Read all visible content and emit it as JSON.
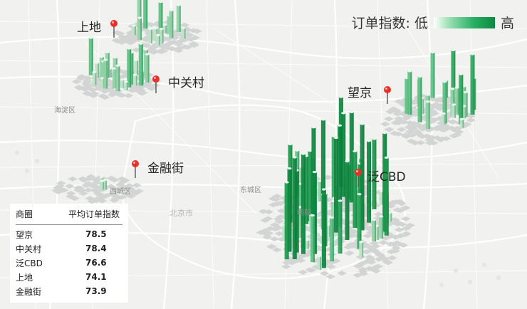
{
  "legend": {
    "title": "订单指数: 低",
    "high": "高",
    "low_color": "#ffffff",
    "high_color": "#0b8a40"
  },
  "districts": {
    "haidian": "海淀区",
    "xicheng": "西城区",
    "dongcheng": "东城区",
    "chaoyang": "朝阳",
    "beijingshi": "北京市"
  },
  "pins": {
    "shangdi": "上地",
    "zhongguancun": "中关村",
    "wangjing": "望京",
    "jinrongjie": "金融街",
    "fancbd": "泛CBD"
  },
  "table": {
    "header": {
      "area": "商圈",
      "index": "平均订单指数"
    },
    "rows": [
      {
        "area": "望京",
        "value": "78.5"
      },
      {
        "area": "中关村",
        "value": "78.4"
      },
      {
        "area": "泛CBD",
        "value": "76.6"
      },
      {
        "area": "上地",
        "value": "74.1"
      },
      {
        "area": "金融街",
        "value": "73.9"
      }
    ]
  }
}
